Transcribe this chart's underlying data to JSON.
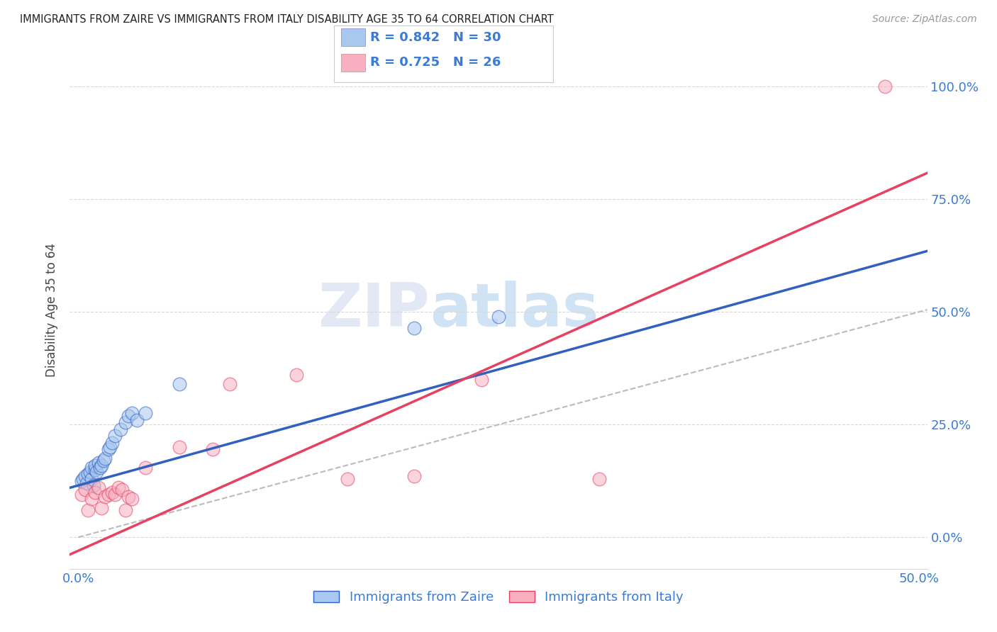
{
  "title": "IMMIGRANTS FROM ZAIRE VS IMMIGRANTS FROM ITALY DISABILITY AGE 35 TO 64 CORRELATION CHART",
  "source": "Source: ZipAtlas.com",
  "ylabel": "Disability Age 35 to 64",
  "xlim": [
    -0.005,
    0.505
  ],
  "ylim": [
    -0.07,
    1.08
  ],
  "yticks_right": [
    0.0,
    0.25,
    0.5,
    0.75,
    1.0
  ],
  "ytick_labels_right": [
    "0.0%",
    "25.0%",
    "50.0%",
    "75.0%",
    "100.0%"
  ],
  "xtick_pos": [
    0.0,
    0.1,
    0.2,
    0.3,
    0.4,
    0.5
  ],
  "xtick_labels": [
    "0.0%",
    "",
    "",
    "",
    "",
    "50.0%"
  ],
  "zaire_color": "#a8c8f0",
  "italy_color": "#f8b0c0",
  "zaire_line_color": "#3060c0",
  "italy_line_color": "#e84060",
  "legend_text_color": "#3a7bd5",
  "axis_tick_color": "#3a7bd5",
  "label_zaire": "Immigrants from Zaire",
  "label_italy": "Immigrants from Italy",
  "legend_r_zaire": "R = 0.842",
  "legend_n_zaire": "N = 30",
  "legend_r_italy": "R = 0.725",
  "legend_n_italy": "N = 26",
  "watermark_zip": "ZIP",
  "watermark_atlas": "atlas",
  "background_color": "#ffffff",
  "grid_color": "#d8d8d8",
  "zaire_scatter_x": [
    0.002,
    0.003,
    0.004,
    0.005,
    0.006,
    0.007,
    0.008,
    0.008,
    0.009,
    0.01,
    0.01,
    0.011,
    0.012,
    0.013,
    0.014,
    0.015,
    0.016,
    0.018,
    0.019,
    0.02,
    0.022,
    0.025,
    0.028,
    0.03,
    0.032,
    0.035,
    0.04,
    0.06,
    0.2,
    0.25
  ],
  "zaire_scatter_y": [
    0.125,
    0.13,
    0.135,
    0.12,
    0.14,
    0.145,
    0.13,
    0.155,
    0.115,
    0.15,
    0.16,
    0.145,
    0.165,
    0.155,
    0.16,
    0.17,
    0.175,
    0.195,
    0.2,
    0.21,
    0.225,
    0.24,
    0.255,
    0.27,
    0.275,
    0.26,
    0.275,
    0.34,
    0.465,
    0.49
  ],
  "italy_scatter_x": [
    0.002,
    0.004,
    0.006,
    0.008,
    0.01,
    0.012,
    0.014,
    0.016,
    0.018,
    0.02,
    0.022,
    0.024,
    0.026,
    0.028,
    0.03,
    0.032,
    0.04,
    0.06,
    0.08,
    0.09,
    0.13,
    0.16,
    0.2,
    0.24,
    0.31,
    0.48
  ],
  "italy_scatter_y": [
    0.095,
    0.105,
    0.06,
    0.085,
    0.1,
    0.11,
    0.065,
    0.09,
    0.095,
    0.1,
    0.095,
    0.11,
    0.105,
    0.06,
    0.09,
    0.085,
    0.155,
    0.2,
    0.195,
    0.34,
    0.36,
    0.13,
    0.135,
    0.35,
    0.13,
    1.0
  ],
  "zaire_line_x0": 0.0,
  "zaire_line_y0": 0.115,
  "zaire_line_x1": 0.5,
  "zaire_line_y1": 0.63,
  "italy_line_x0": 0.0,
  "italy_line_y0": -0.03,
  "italy_line_x1": 0.5,
  "italy_line_y1": 0.8
}
